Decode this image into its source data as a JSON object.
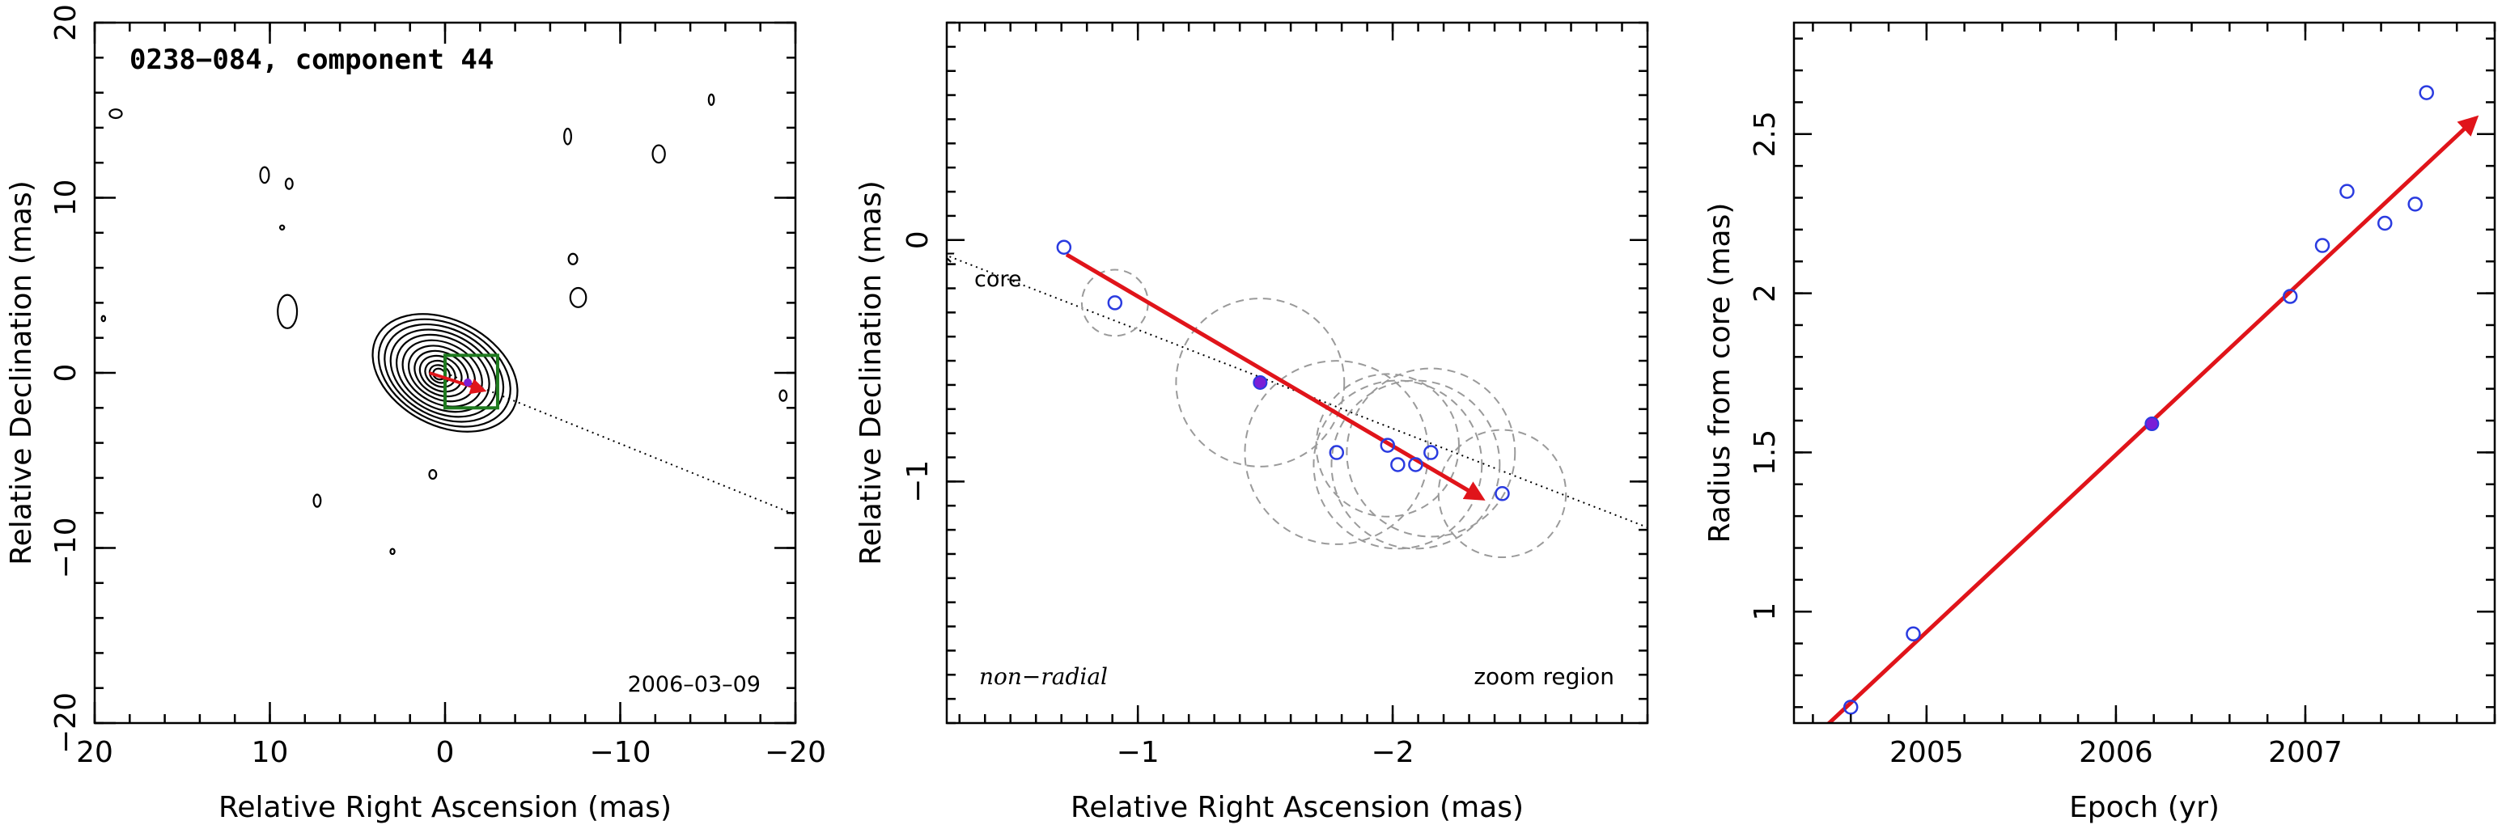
{
  "chart_data": [
    {
      "type": "scatter",
      "title": "0238−084, component 44",
      "date": "2006–03–09",
      "xlabel": "Relative Right Ascension (mas)",
      "ylabel": "Relative Declination (mas)",
      "xlim": [
        20,
        -20
      ],
      "ylim": [
        -20,
        20
      ],
      "xticks": [
        20,
        10,
        0,
        -10,
        -20
      ],
      "yticks": [
        -20,
        -10,
        0,
        10,
        20
      ],
      "xtick_labels": [
        "20",
        "10",
        "0",
        "−10",
        "−20"
      ],
      "ytick_labels": [
        "−20",
        "−10",
        "0",
        "10",
        "20"
      ],
      "contour_center": [
        0,
        0
      ],
      "zoom_box": {
        "x": [
          0,
          -3
        ],
        "y": [
          -2,
          1
        ]
      },
      "direction_line": {
        "from": [
          0,
          0
        ],
        "to": [
          -20,
          -8.1
        ]
      }
    },
    {
      "type": "scatter",
      "title": "",
      "xlabel": "Relative Right Ascension (mas)",
      "ylabel": "Relative Declination (mas)",
      "xlim": [
        -0.25,
        -3.0
      ],
      "ylim": [
        -2.0,
        0.9
      ],
      "xticks": [
        -1,
        -2
      ],
      "yticks": [
        -1,
        0
      ],
      "xtick_labels": [
        "−1",
        "−2"
      ],
      "ytick_labels": [
        "−1",
        "0"
      ],
      "annotations": {
        "core": "core",
        "non_radial": "non−radial",
        "zoom": "zoom region"
      },
      "points": [
        {
          "x": -0.71,
          "y": -0.03,
          "size": 0
        },
        {
          "x": -0.91,
          "y": -0.26,
          "size": 0.13
        },
        {
          "x": -1.48,
          "y": -0.59,
          "size": 0.33
        },
        {
          "x": -1.78,
          "y": -0.88,
          "size": 0.36
        },
        {
          "x": -1.98,
          "y": -0.85,
          "size": 0.28
        },
        {
          "x": -2.02,
          "y": -0.93,
          "size": 0.33
        },
        {
          "x": -2.09,
          "y": -0.93,
          "size": 0.33
        },
        {
          "x": -2.15,
          "y": -0.88,
          "size": 0.33
        },
        {
          "x": -2.43,
          "y": -1.05,
          "size": 0.25
        }
      ],
      "selected_index": 2,
      "fit_arrow": {
        "from": [
          -0.72,
          -0.06
        ],
        "to": [
          -2.35,
          -1.07
        ]
      },
      "core_line": {
        "from": [
          -0.24,
          -0.06
        ],
        "to": [
          -3.0,
          -1.19
        ]
      }
    },
    {
      "type": "scatter",
      "title": "",
      "xlabel": "Epoch (yr)",
      "ylabel": "Radius from core (mas)",
      "xlim": [
        2004.3,
        2008.0
      ],
      "ylim": [
        0.65,
        2.85
      ],
      "xticks": [
        2005,
        2006,
        2007
      ],
      "yticks": [
        1,
        1.5,
        2,
        2.5
      ],
      "xtick_labels": [
        "2005",
        "2006",
        "2007"
      ],
      "ytick_labels": [
        "1",
        "1.5",
        "2",
        "2.5"
      ],
      "points": [
        {
          "x": 2004.6,
          "y": 0.7
        },
        {
          "x": 2004.93,
          "y": 0.93
        },
        {
          "x": 2006.19,
          "y": 1.59
        },
        {
          "x": 2006.92,
          "y": 1.99
        },
        {
          "x": 2007.09,
          "y": 2.15
        },
        {
          "x": 2007.22,
          "y": 2.32
        },
        {
          "x": 2007.42,
          "y": 2.22
        },
        {
          "x": 2007.58,
          "y": 2.28
        },
        {
          "x": 2007.64,
          "y": 2.63
        }
      ],
      "selected_index": 2,
      "fit_arrow": {
        "from": [
          2004.45,
          0.63
        ],
        "to": [
          2007.9,
          2.55
        ]
      }
    }
  ],
  "colors": {
    "axes": "#000000",
    "points": "#2a3be0",
    "selected_point": "#7a1fd6",
    "fit": "#e0141a",
    "error_circles": "#9a9a9a",
    "zoom_box": "#1f7a1f"
  }
}
